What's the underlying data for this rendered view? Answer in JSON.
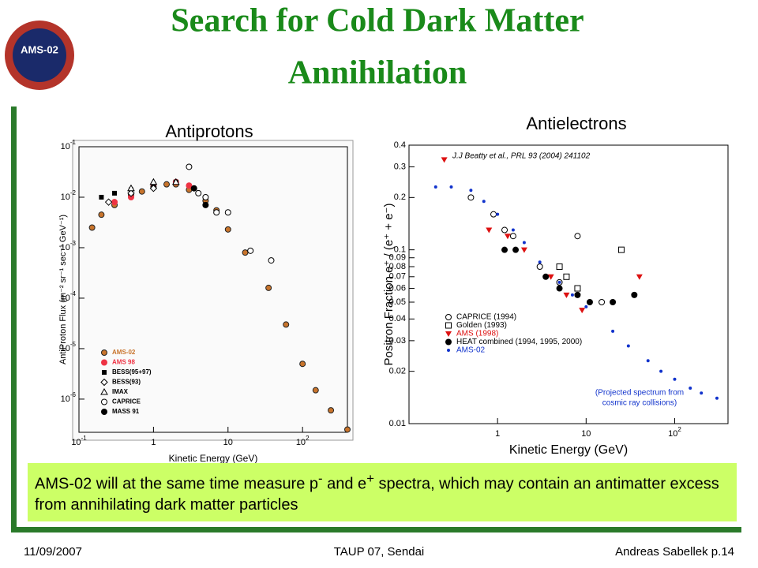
{
  "slide": {
    "title_lines": [
      "Search for Cold Dark Matter",
      "Annihilation"
    ],
    "logo_text": "AMS-02",
    "text_box": {
      "parts": [
        "AMS-02 will at the same time measure p",
        "-",
        " and e",
        "+",
        " spectra, which may contain an antimatter excess from annihilating dark matter particles"
      ]
    },
    "footer": {
      "date": "11/09/2007",
      "event": "TAUP 07, Sendai",
      "author": "Andreas Sabellek p.14"
    }
  },
  "chart_data": [
    {
      "type": "scatter",
      "title": "Antiprotons",
      "x_label": "Kinetic Energy (GeV)",
      "y_label": "AntiProton Flux (m⁻² sr⁻¹ sec⁻¹ GeV⁻¹)",
      "log_x": true,
      "log_y": true,
      "legend": "lower left",
      "xlim": [
        0.1,
        400
      ],
      "ylim": [
        2.2e-07,
        0.1
      ],
      "xticks": [
        {
          "value": 0.1,
          "label": "10",
          "exponent": "-1"
        },
        1,
        10,
        {
          "value": 100,
          "label": "10",
          "exponent": "2"
        }
      ],
      "yticks": [
        {
          "value": 0.1,
          "label": "10",
          "exponent": "-1"
        },
        {
          "value": 0.01,
          "label": "10",
          "exponent": "-2"
        },
        {
          "value": 0.001,
          "label": "10",
          "exponent": "-3"
        },
        {
          "value": 0.0001,
          "label": "10",
          "exponent": "-4"
        },
        {
          "value": 1e-05,
          "label": "10",
          "exponent": "-5"
        },
        {
          "value": 1e-06,
          "label": "10",
          "exponent": "-6"
        }
      ],
      "series": [
        {
          "name": "AMS-02",
          "color": "#c8742c",
          "marker": "dot",
          "x": [
            0.15,
            0.2,
            0.3,
            0.5,
            0.7,
            1,
            1.5,
            2,
            3,
            5,
            7,
            10,
            17,
            35,
            60,
            100,
            150,
            240,
            400
          ],
          "values": [
            0.0025,
            0.0045,
            0.007,
            0.011,
            0.013,
            0.016,
            0.018,
            0.018,
            0.014,
            0.0085,
            0.0055,
            0.0023,
            0.0008,
            0.00016,
            3e-05,
            5e-06,
            1.5e-06,
            6e-07,
            2.5e-07
          ]
        },
        {
          "name": "AMS 98",
          "color": "#ee3344",
          "marker": "circle",
          "x": [
            0.3,
            0.5,
            1,
            2,
            3
          ],
          "values": [
            0.008,
            0.01,
            0.018,
            0.02,
            0.017
          ]
        },
        {
          "name": "BESS(95+97)",
          "color": "#000000",
          "marker": "square",
          "x": [
            0.2,
            0.3,
            0.5,
            1,
            2
          ],
          "values": [
            0.01,
            0.012,
            0.014,
            0.018,
            0.02
          ]
        },
        {
          "name": "BESS(93)",
          "color": "#000000",
          "marker": "diamond-open",
          "x": [
            0.25,
            0.5,
            1
          ],
          "values": [
            0.008,
            0.012,
            0.015
          ]
        },
        {
          "name": "IMAX",
          "color": "#000000",
          "marker": "triangle-open",
          "x": [
            0.5,
            1,
            2
          ],
          "values": [
            0.015,
            0.02,
            0.02
          ]
        },
        {
          "name": "CAPRICE",
          "color": "#000000",
          "marker": "circle-open",
          "x": [
            3,
            4,
            5,
            7,
            10,
            20,
            38
          ],
          "values": [
            0.04,
            0.012,
            0.01,
            0.005,
            0.005,
            0.00087,
            0.00056
          ]
        },
        {
          "name": "MASS 91",
          "color": "#000000",
          "marker": "circle",
          "x": [
            3.5,
            5
          ],
          "values": [
            0.015,
            0.007
          ]
        }
      ]
    },
    {
      "type": "scatter",
      "title": "Antielectrons",
      "x_label": "Kinetic Energy (GeV)",
      "y_label": "Positron Fraction e⁺ / (e⁺ + e⁻)",
      "log_x": true,
      "log_y": true,
      "legend": "lower left",
      "annotations": [
        "J.J Beatty et al., PRL 93 (2004) 241102",
        "(Projected spectrum from",
        "cosmic ray collisions)"
      ],
      "xlim": [
        0.1,
        400
      ],
      "ylim": [
        0.01,
        0.4
      ],
      "xticks": [
        1,
        10,
        {
          "value": 100,
          "label": "10",
          "exponent": "2"
        }
      ],
      "yticks": [
        0.01,
        0.02,
        0.03,
        0.04,
        0.05,
        0.06,
        0.07,
        0.08,
        0.09,
        0.1,
        0.2,
        0.3,
        0.4
      ],
      "series": [
        {
          "name": "CAPRICE (1994)",
          "color": "#000000",
          "marker": "circle-open",
          "x": [
            0.5,
            0.9,
            1.2,
            1.5,
            3,
            5,
            8,
            15
          ],
          "values": [
            0.2,
            0.16,
            0.13,
            0.12,
            0.08,
            0.065,
            0.12,
            0.05
          ]
        },
        {
          "name": "Golden (1993)",
          "color": "#000000",
          "marker": "square-open",
          "x": [
            5,
            6,
            8,
            25
          ],
          "values": [
            0.08,
            0.07,
            0.06,
            0.1
          ]
        },
        {
          "name": "AMS (1998)",
          "color": "#dd1111",
          "marker": "triangle-down",
          "x": [
            0.25,
            0.8,
            1.3,
            2,
            4,
            6,
            9,
            40
          ],
          "values": [
            0.33,
            0.13,
            0.12,
            0.1,
            0.07,
            0.055,
            0.045,
            0.07
          ]
        },
        {
          "name": "HEAT combined (1994, 1995, 2000)",
          "color": "#000000",
          "marker": "circle",
          "x": [
            1.2,
            1.6,
            3.5,
            5,
            8,
            11,
            20,
            35
          ],
          "values": [
            0.1,
            0.1,
            0.07,
            0.06,
            0.055,
            0.05,
            0.05,
            0.055
          ]
        },
        {
          "name": "AMS-02",
          "color": "#1133cc",
          "marker": "dot",
          "x": [
            0.2,
            0.3,
            0.5,
            0.7,
            1,
            1.5,
            2,
            3,
            5,
            7,
            10,
            20,
            30,
            50,
            70,
            100,
            150,
            200,
            300
          ],
          "values": [
            0.23,
            0.23,
            0.22,
            0.19,
            0.16,
            0.13,
            0.11,
            0.085,
            0.065,
            0.055,
            0.047,
            0.034,
            0.028,
            0.023,
            0.02,
            0.018,
            0.016,
            0.015,
            0.014
          ]
        }
      ]
    }
  ]
}
